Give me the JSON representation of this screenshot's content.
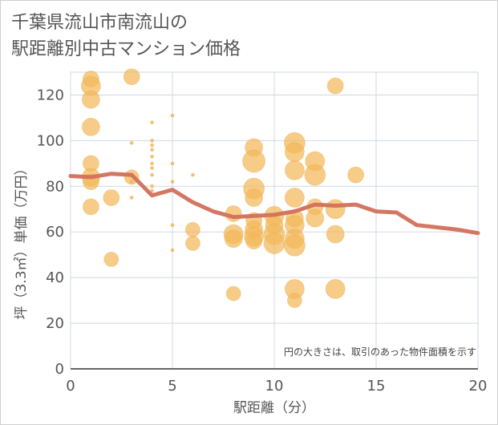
{
  "title_line1": "千葉県流山市南流山の",
  "title_line2": "駅距離別中古マンション価格",
  "chart_data": {
    "type": "scatter",
    "xlabel": "駅距離（分）",
    "ylabel": "坪（3.3㎡）単価（万円）",
    "xlim": [
      0,
      20
    ],
    "ylim": [
      0,
      130
    ],
    "x_ticks": [
      "0",
      "5",
      "10",
      "15",
      "20"
    ],
    "y_ticks": [
      "0",
      "20",
      "40",
      "60",
      "80",
      "100",
      "120"
    ],
    "x_tick_values": [
      0,
      5,
      10,
      15,
      20
    ],
    "y_tick_values": [
      0,
      20,
      40,
      60,
      80,
      100,
      120
    ],
    "grid": true,
    "note": "円の大きさは、取引のあった物件面積を示す",
    "colors": {
      "bubble": "#f2b95a",
      "trend": "#d2705a",
      "grid": "#d0d8e4",
      "axis": "#333333"
    },
    "points": [
      {
        "x": 1,
        "y": 127,
        "r": 10
      },
      {
        "x": 1,
        "y": 124,
        "r": 12
      },
      {
        "x": 1,
        "y": 118,
        "r": 11
      },
      {
        "x": 1,
        "y": 106,
        "r": 11
      },
      {
        "x": 1,
        "y": 90,
        "r": 10
      },
      {
        "x": 1,
        "y": 84,
        "r": 11
      },
      {
        "x": 1,
        "y": 82,
        "r": 10
      },
      {
        "x": 1,
        "y": 71,
        "r": 10
      },
      {
        "x": 2,
        "y": 75,
        "r": 10
      },
      {
        "x": 2,
        "y": 48,
        "r": 9
      },
      {
        "x": 3,
        "y": 128,
        "r": 10
      },
      {
        "x": 3,
        "y": 99,
        "r": 2
      },
      {
        "x": 3,
        "y": 84,
        "r": 9
      },
      {
        "x": 3,
        "y": 82,
        "r": 2
      },
      {
        "x": 3,
        "y": 75,
        "r": 2
      },
      {
        "x": 4,
        "y": 108,
        "r": 2
      },
      {
        "x": 4,
        "y": 100,
        "r": 2
      },
      {
        "x": 4,
        "y": 98,
        "r": 2
      },
      {
        "x": 4,
        "y": 96,
        "r": 2
      },
      {
        "x": 4,
        "y": 93,
        "r": 2
      },
      {
        "x": 4,
        "y": 90,
        "r": 2
      },
      {
        "x": 4,
        "y": 88,
        "r": 2
      },
      {
        "x": 4,
        "y": 85,
        "r": 2
      },
      {
        "x": 4,
        "y": 80,
        "r": 2
      },
      {
        "x": 4,
        "y": 78,
        "r": 2
      },
      {
        "x": 5,
        "y": 111,
        "r": 2
      },
      {
        "x": 5,
        "y": 90,
        "r": 2
      },
      {
        "x": 5,
        "y": 82,
        "r": 2
      },
      {
        "x": 5,
        "y": 63,
        "r": 2
      },
      {
        "x": 5,
        "y": 52,
        "r": 2
      },
      {
        "x": 6,
        "y": 85,
        "r": 2
      },
      {
        "x": 6,
        "y": 61,
        "r": 9
      },
      {
        "x": 6,
        "y": 55,
        "r": 9
      },
      {
        "x": 8,
        "y": 68,
        "r": 10
      },
      {
        "x": 8,
        "y": 59,
        "r": 12
      },
      {
        "x": 8,
        "y": 57,
        "r": 11
      },
      {
        "x": 8,
        "y": 33,
        "r": 9
      },
      {
        "x": 9,
        "y": 97,
        "r": 11
      },
      {
        "x": 9,
        "y": 91,
        "r": 14
      },
      {
        "x": 9,
        "y": 79,
        "r": 13
      },
      {
        "x": 9,
        "y": 75,
        "r": 11
      },
      {
        "x": 9,
        "y": 65,
        "r": 10
      },
      {
        "x": 9,
        "y": 61,
        "r": 11
      },
      {
        "x": 9,
        "y": 58,
        "r": 12
      },
      {
        "x": 9,
        "y": 56,
        "r": 10
      },
      {
        "x": 10,
        "y": 67,
        "r": 12
      },
      {
        "x": 10,
        "y": 63,
        "r": 11
      },
      {
        "x": 10,
        "y": 59,
        "r": 13
      },
      {
        "x": 10,
        "y": 55,
        "r": 13
      },
      {
        "x": 11,
        "y": 99,
        "r": 13
      },
      {
        "x": 11,
        "y": 95,
        "r": 12
      },
      {
        "x": 11,
        "y": 87,
        "r": 12
      },
      {
        "x": 11,
        "y": 75,
        "r": 12
      },
      {
        "x": 11,
        "y": 66,
        "r": 11
      },
      {
        "x": 11,
        "y": 63,
        "r": 12
      },
      {
        "x": 11,
        "y": 57,
        "r": 12
      },
      {
        "x": 11,
        "y": 54,
        "r": 13
      },
      {
        "x": 11,
        "y": 35,
        "r": 12
      },
      {
        "x": 11,
        "y": 30,
        "r": 9
      },
      {
        "x": 12,
        "y": 91,
        "r": 12
      },
      {
        "x": 12,
        "y": 85,
        "r": 13
      },
      {
        "x": 12,
        "y": 71,
        "r": 10
      },
      {
        "x": 12,
        "y": 66,
        "r": 11
      },
      {
        "x": 13,
        "y": 124,
        "r": 10
      },
      {
        "x": 13,
        "y": 70,
        "r": 12
      },
      {
        "x": 13,
        "y": 59,
        "r": 11
      },
      {
        "x": 13,
        "y": 35,
        "r": 12
      },
      {
        "x": 14,
        "y": 85,
        "r": 10
      }
    ],
    "trend": {
      "x": [
        0,
        1,
        2,
        3,
        4,
        5,
        6,
        7,
        8,
        9,
        10,
        11,
        12,
        13,
        14,
        15,
        16,
        17,
        18,
        19,
        20
      ],
      "y": [
        84.5,
        84,
        85.5,
        85,
        76,
        78.5,
        73,
        69,
        66.5,
        67,
        67.5,
        69,
        72,
        71.5,
        72,
        69,
        68.5,
        63,
        62,
        61,
        59.5
      ]
    }
  }
}
